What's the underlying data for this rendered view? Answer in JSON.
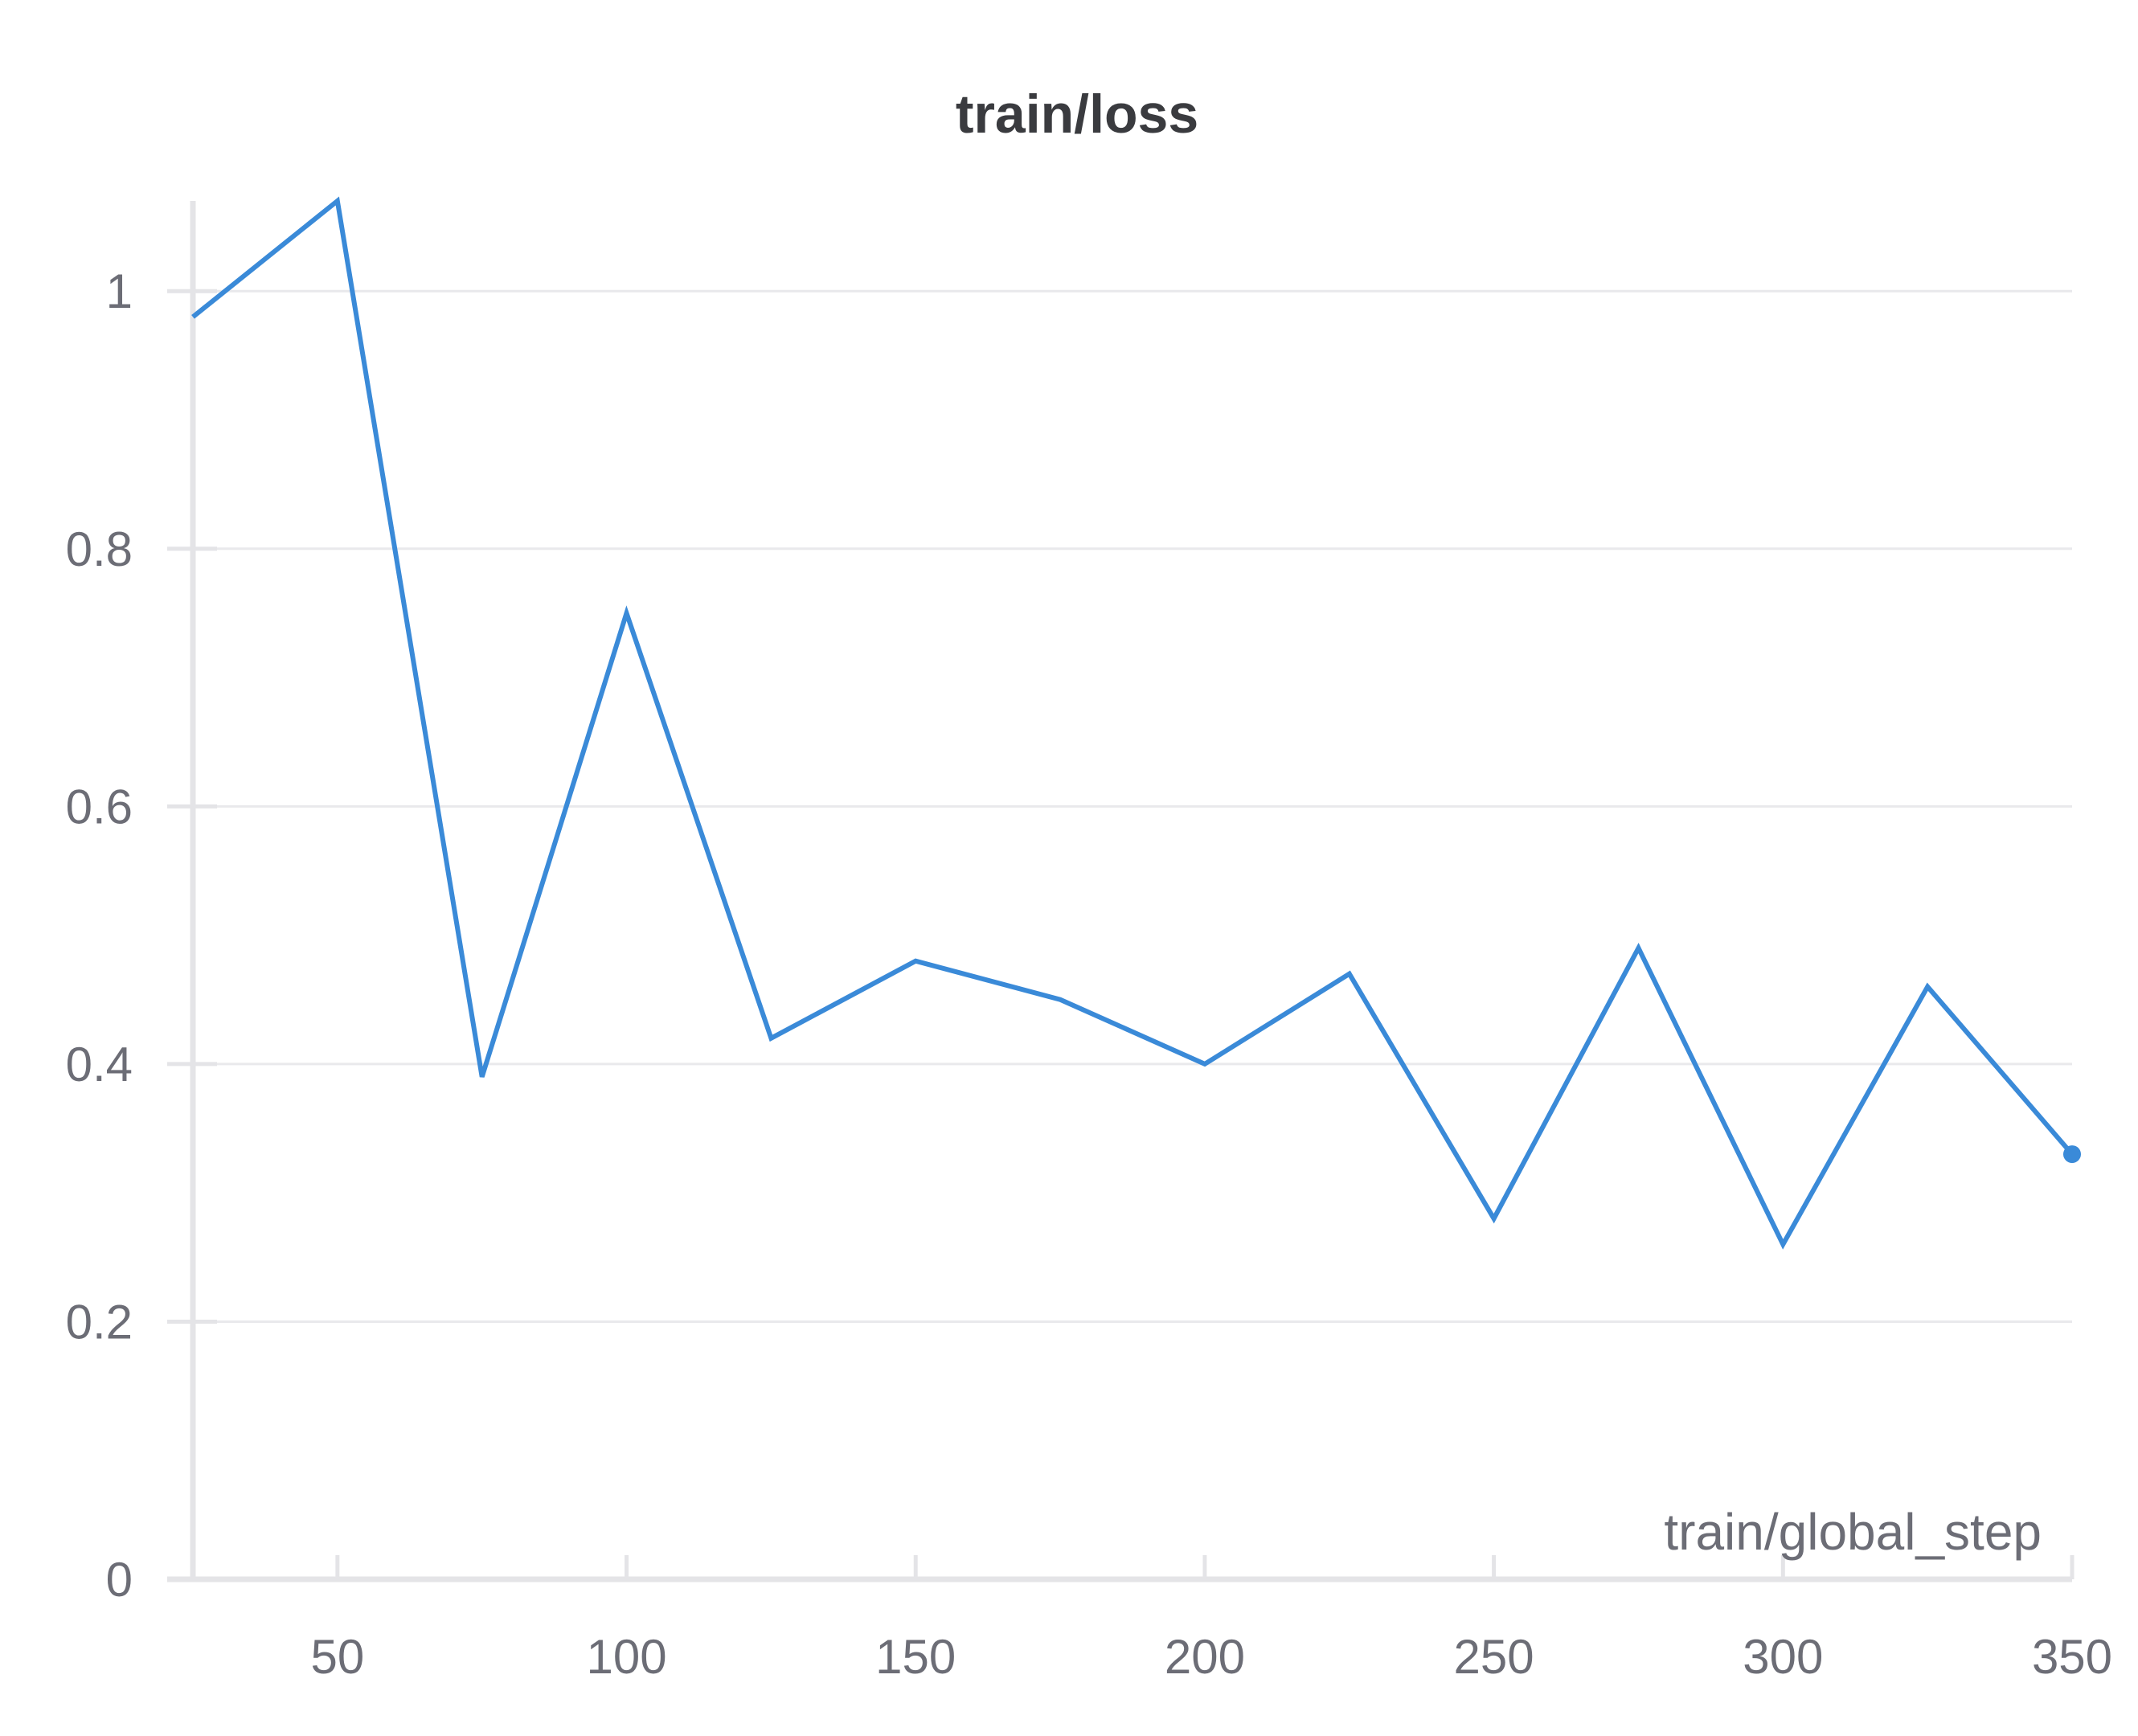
{
  "chart_data": {
    "type": "line",
    "title": "train/loss",
    "xlabel": "train/global_step",
    "ylabel": "",
    "xlim": [
      25,
      350
    ],
    "ylim": [
      0,
      1.07
    ],
    "xticks": [
      50,
      100,
      150,
      200,
      250,
      300,
      350
    ],
    "yticks": [
      0,
      0.2,
      0.4,
      0.6,
      0.8,
      1
    ],
    "ytick_labels": [
      "0",
      "0.2",
      "0.4",
      "0.6",
      "0.8",
      "1"
    ],
    "grid": true,
    "series": [
      {
        "color": "#3a8ad8",
        "x": [
          25,
          50,
          75,
          100,
          125,
          150,
          175,
          200,
          225,
          250,
          275,
          300,
          325,
          350
        ],
        "y": [
          0.98,
          1.07,
          0.39,
          0.75,
          0.42,
          0.48,
          0.45,
          0.4,
          0.47,
          0.28,
          0.49,
          0.26,
          0.46,
          0.33
        ]
      }
    ]
  }
}
